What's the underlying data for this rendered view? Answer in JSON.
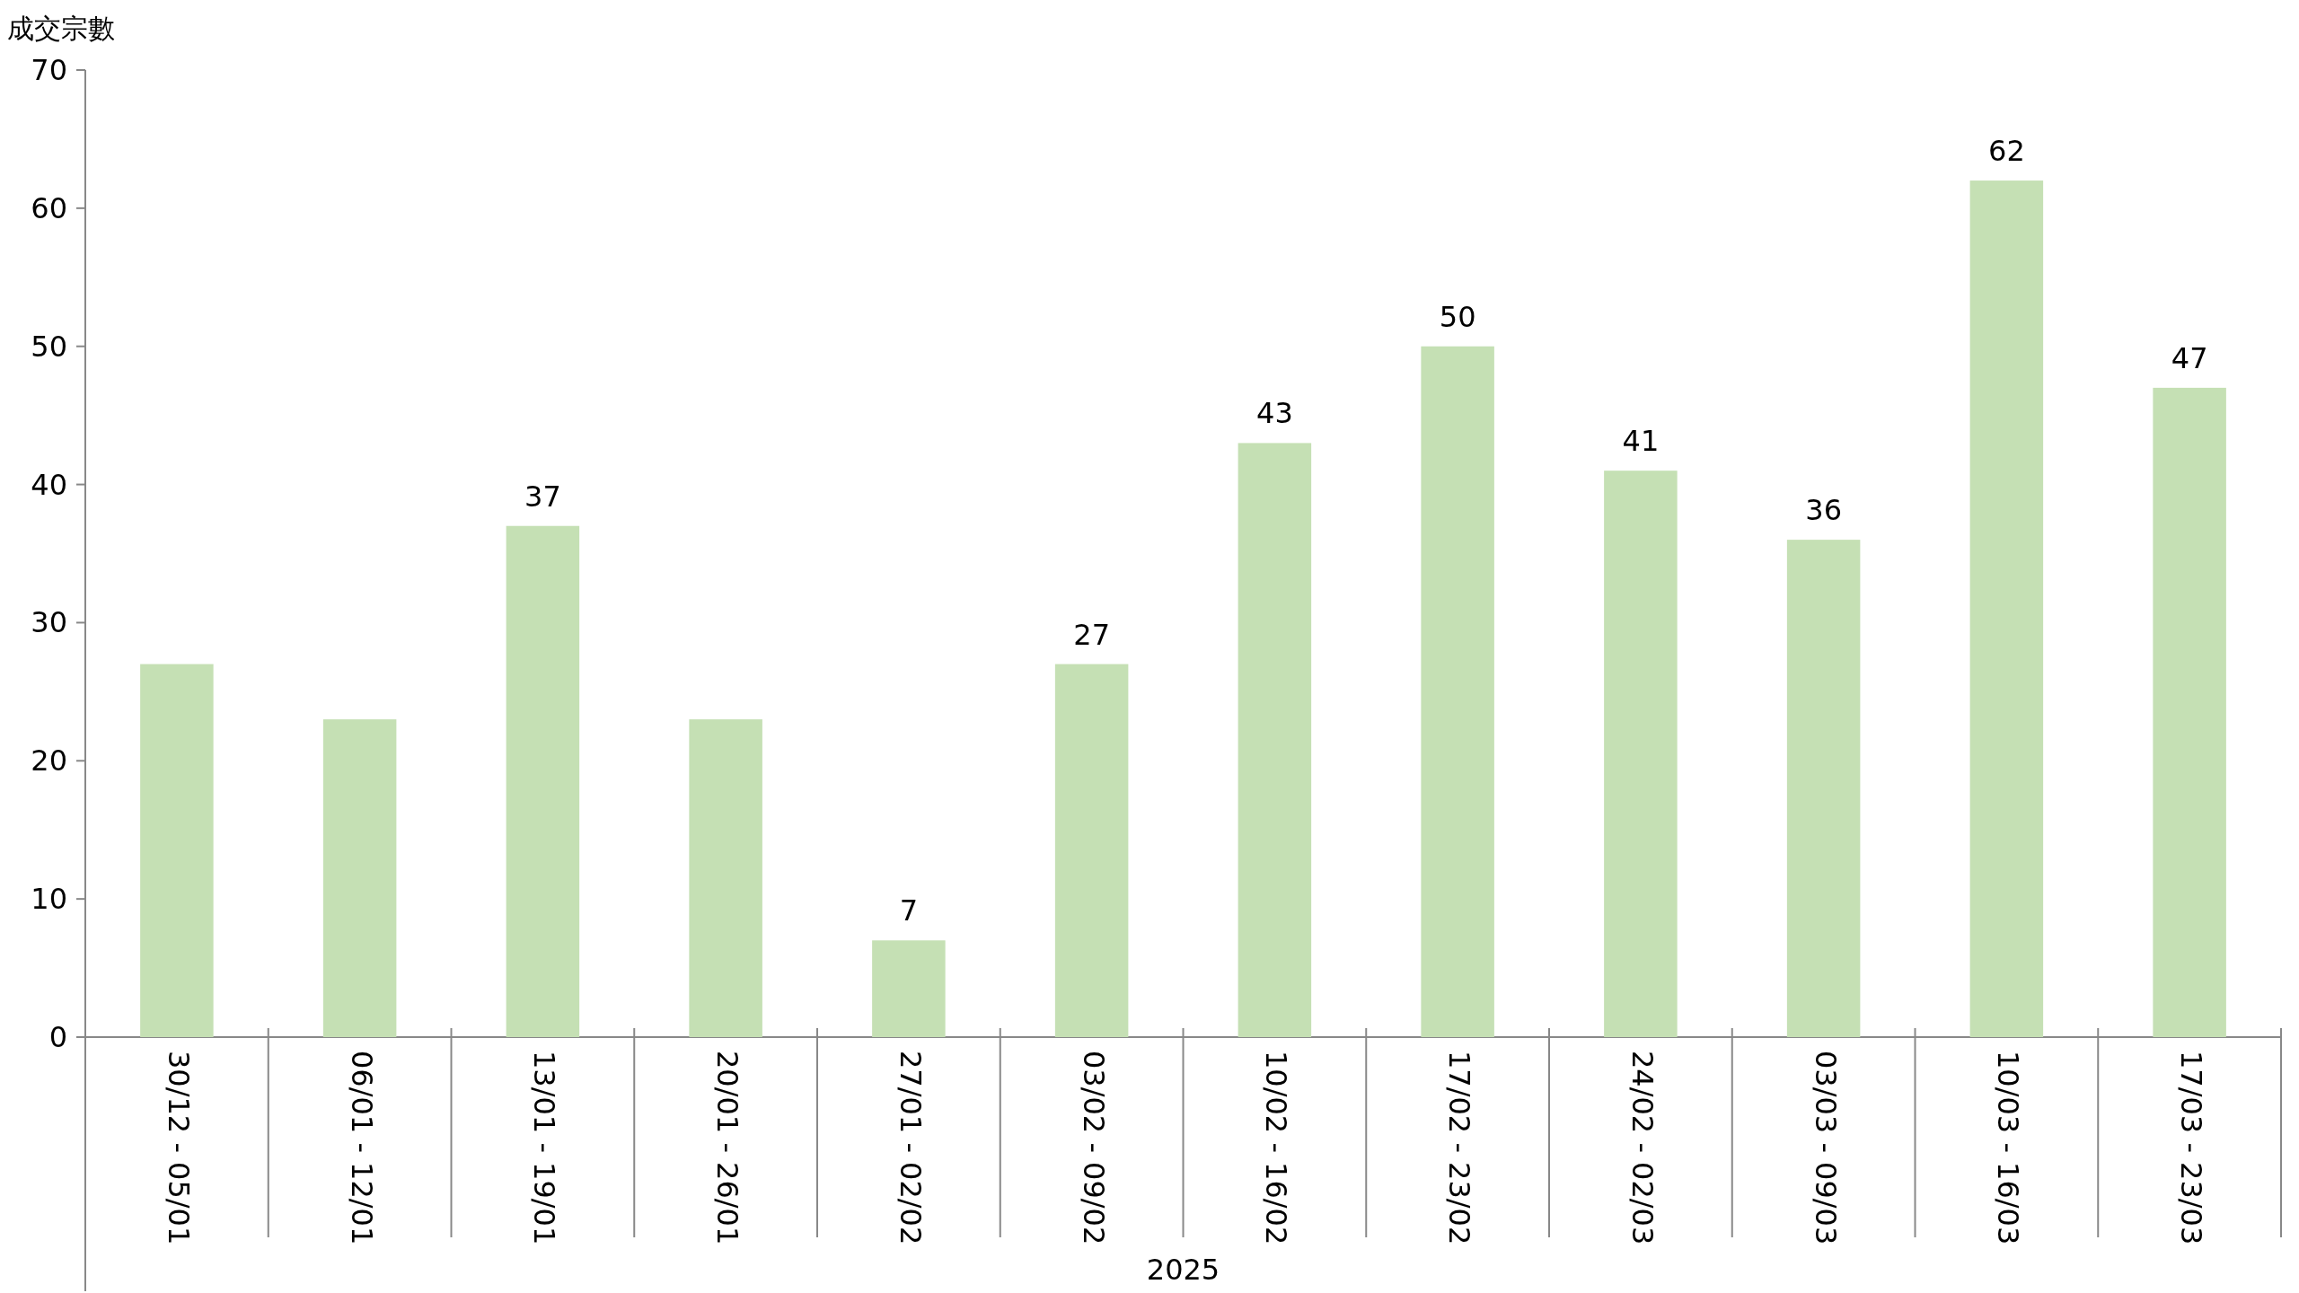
{
  "chart_data": {
    "type": "bar",
    "ylabel": "成交宗數",
    "xlabel": "2025",
    "categories": [
      "30/12 - 05/01",
      "06/01 - 12/01",
      "13/01 - 19/01",
      "20/01 - 26/01",
      "27/01 - 02/02",
      "03/02 - 09/02",
      "10/02 - 16/02",
      "17/02 - 23/02",
      "24/02 - 02/03",
      "03/03 - 09/03",
      "10/03 - 16/03",
      "17/03 - 23/03"
    ],
    "values": [
      27,
      23,
      37,
      23,
      7,
      27,
      43,
      50,
      41,
      36,
      62,
      47
    ],
    "value_labels": [
      null,
      null,
      "37",
      null,
      "7",
      "27",
      "43",
      "50",
      "41",
      "36",
      "62",
      "47"
    ],
    "color": "#c5e0b4",
    "ylim": [
      0,
      70
    ],
    "yticks": [
      0,
      10,
      20,
      30,
      40,
      50,
      60,
      70
    ]
  }
}
